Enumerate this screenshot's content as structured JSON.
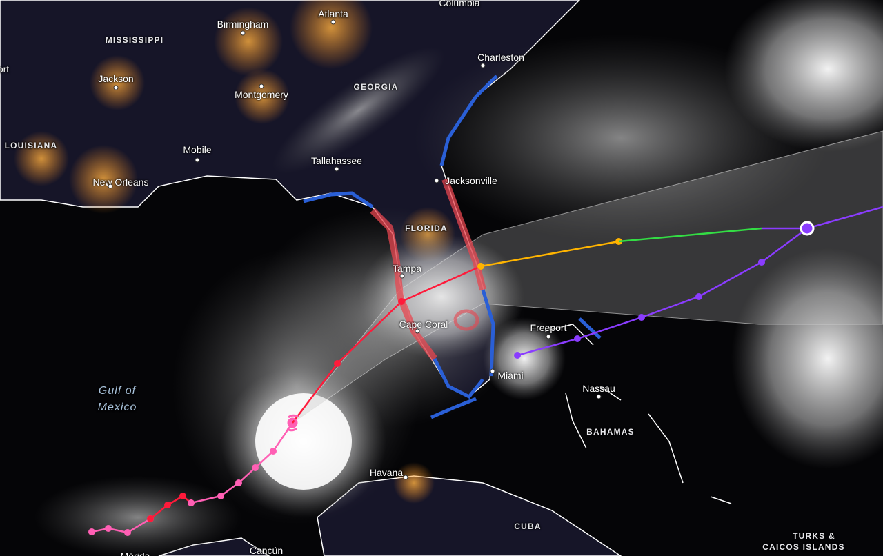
{
  "map": {
    "cities": [
      {
        "name": "Columbia"
      },
      {
        "name": "Atlanta"
      },
      {
        "name": "Birmingham"
      },
      {
        "name": "Jackson"
      },
      {
        "name": "Charleston"
      },
      {
        "name": "Montgomery"
      },
      {
        "name": "Mobile"
      },
      {
        "name": "Tallahassee"
      },
      {
        "name": "Jacksonville"
      },
      {
        "name": "New Orleans"
      },
      {
        "name": "Tampa"
      },
      {
        "name": "Cape Coral"
      },
      {
        "name": "Freeport"
      },
      {
        "name": "Miami"
      },
      {
        "name": "Nassau"
      },
      {
        "name": "Havana"
      },
      {
        "name": "Cancún"
      },
      {
        "name": "Mérida"
      },
      {
        "name": "ort"
      }
    ],
    "regions": [
      {
        "name": "MISSISSIPPI"
      },
      {
        "name": "GEORGIA"
      },
      {
        "name": "LOUISIANA"
      },
      {
        "name": "FLORIDA"
      },
      {
        "name": "BAHAMAS"
      },
      {
        "name": "CUBA"
      },
      {
        "name": "TURKS &"
      },
      {
        "name": "CAICOS ISLANDS"
      }
    ],
    "water": {
      "line1": "Gulf of",
      "line2": "Mexico"
    },
    "colors": {
      "past_track": "#ff5fb4",
      "past_track_hurricane": "#ff1a3a",
      "forecast_hurricane": "#ff1a3a",
      "forecast_tropical_storm": "#ffb400",
      "forecast_depression": "#33dd44",
      "post_tropical": "#8a3cff",
      "hurricane_warning": "#e8454f",
      "tropical_storm_warning": "#2a5fd6",
      "cone": "#bbbbbb"
    },
    "storm_icon": "hurricane-symbol-icon"
  }
}
